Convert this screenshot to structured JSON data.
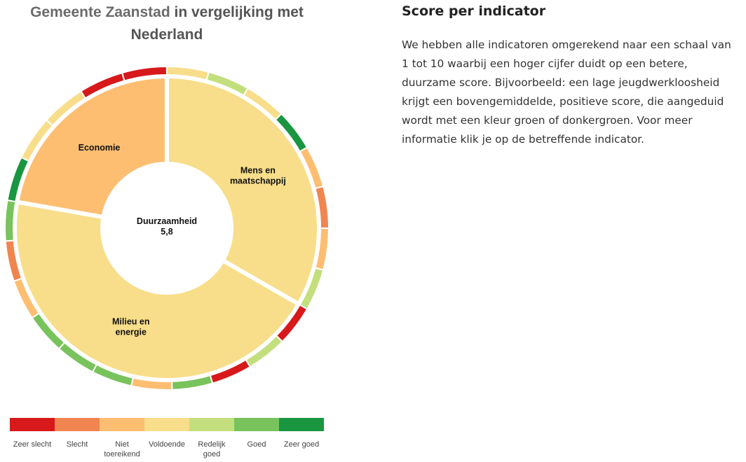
{
  "page": {
    "title_place": "Gemeente Zaanstad",
    "title_line1_rest": " in vergelijking met",
    "title_line2": "Nederland"
  },
  "info": {
    "heading": "Score per indicator",
    "lines": [
      "We hebben alle indicatoren omgerekend naar een schaal van",
      "1 tot 10 waarbij een hoger cijfer duidt op een betere,",
      "duurzame score. Bijvoorbeeld: een lage jeugdwerkloosheid",
      "krijgt een bovengemiddelde, positieve score, die aangeduid",
      "wordt met een kleur groen of donkergroen. Voor meer",
      "informatie klik je op de betreffende indicator."
    ]
  },
  "legend": [
    {
      "label": "Zeer slecht",
      "color": "#d7191c"
    },
    {
      "label": "Slecht",
      "color": "#f08550"
    },
    {
      "label": "Niet toereikend",
      "color": "#fdbe72"
    },
    {
      "label": "Voldoende",
      "color": "#f8de8a"
    },
    {
      "label": "Redelijk goed",
      "color": "#c3df7d"
    },
    {
      "label": "Goed",
      "color": "#78c35c"
    },
    {
      "label": "Zeer goed",
      "color": "#1a9641"
    }
  ],
  "chart_data": {
    "type": "donut",
    "center": {
      "label": "Duurzaamheid",
      "value": "5,8"
    },
    "categories": [
      {
        "name": "Mens en maatschappij",
        "label_lines": [
          "Mens en",
          "maatschappij"
        ],
        "score_class": "Voldoende",
        "share": 0.3333
      },
      {
        "name": "Milieu en energie",
        "label_lines": [
          "Milieu en",
          "energie"
        ],
        "score_class": "Voldoende",
        "share": 0.4444
      },
      {
        "name": "Economie",
        "label_lines": [
          "Economie"
        ],
        "score_class": "Niet toereikend",
        "share": 0.2222
      }
    ],
    "indicators": [
      {
        "category": "Mens en maatschappij",
        "class": "Voldoende"
      },
      {
        "category": "Mens en maatschappij",
        "class": "Redelijk goed"
      },
      {
        "category": "Mens en maatschappij",
        "class": "Voldoende"
      },
      {
        "category": "Mens en maatschappij",
        "class": "Zeer goed"
      },
      {
        "category": "Mens en maatschappij",
        "class": "Niet toereikend"
      },
      {
        "category": "Mens en maatschappij",
        "class": "Slecht"
      },
      {
        "category": "Mens en maatschappij",
        "class": "Niet toereikend"
      },
      {
        "category": "Mens en maatschappij",
        "class": "Redelijk goed"
      },
      {
        "category": "Milieu en energie",
        "class": "Zeer slecht"
      },
      {
        "category": "Milieu en energie",
        "class": "Redelijk goed"
      },
      {
        "category": "Milieu en energie",
        "class": "Zeer slecht"
      },
      {
        "category": "Milieu en energie",
        "class": "Goed"
      },
      {
        "category": "Milieu en energie",
        "class": "Niet toereikend"
      },
      {
        "category": "Milieu en energie",
        "class": "Goed"
      },
      {
        "category": "Milieu en energie",
        "class": "Goed"
      },
      {
        "category": "Milieu en energie",
        "class": "Goed"
      },
      {
        "category": "Milieu en energie",
        "class": "Niet toereikend"
      },
      {
        "category": "Milieu en energie",
        "class": "Slecht"
      },
      {
        "category": "Milieu en energie",
        "class": "Goed"
      },
      {
        "category": "Economie",
        "class": "Zeer goed"
      },
      {
        "category": "Economie",
        "class": "Voldoende"
      },
      {
        "category": "Economie",
        "class": "Voldoende"
      },
      {
        "category": "Economie",
        "class": "Zeer slecht"
      },
      {
        "category": "Economie",
        "class": "Zeer slecht"
      }
    ]
  }
}
